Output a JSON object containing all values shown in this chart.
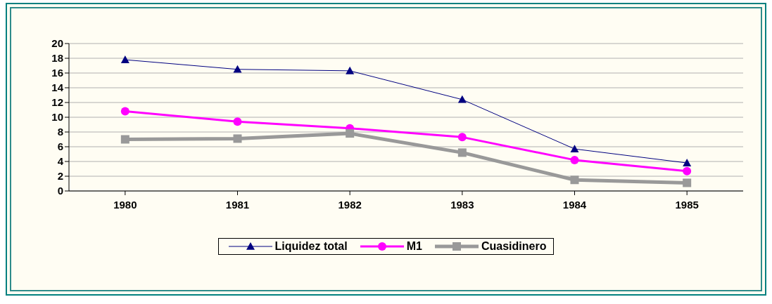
{
  "chart_data": {
    "type": "line",
    "categories": [
      "1980",
      "1981",
      "1982",
      "1983",
      "1984",
      "1985"
    ],
    "series": [
      {
        "name": "Liquidez total",
        "color": "#000080",
        "marker": "triangle",
        "values": [
          17.8,
          16.5,
          16.3,
          12.4,
          5.7,
          3.8
        ]
      },
      {
        "name": "M1",
        "color": "#ff00ff",
        "marker": "circle",
        "values": [
          10.8,
          9.4,
          8.5,
          7.3,
          4.2,
          2.7
        ]
      },
      {
        "name": "Cuasidinero",
        "color": "#999999",
        "marker": "square",
        "values": [
          7.0,
          7.1,
          7.8,
          5.2,
          1.5,
          1.1
        ]
      }
    ],
    "ylim": [
      0,
      20
    ],
    "yticks": [
      0,
      2,
      4,
      6,
      8,
      10,
      12,
      14,
      16,
      18,
      20
    ],
    "grid": "y",
    "legend": "bottom"
  }
}
